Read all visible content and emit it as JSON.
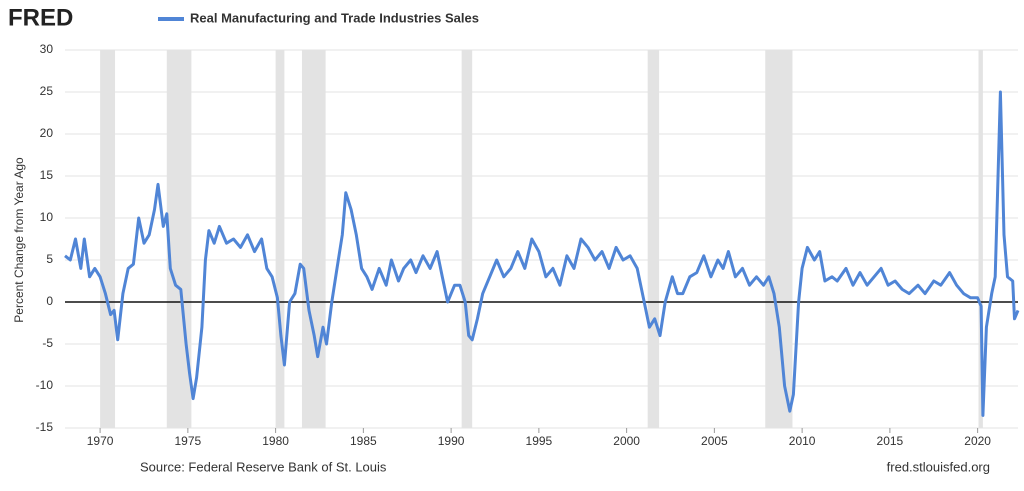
{
  "brand": "FRED",
  "chart_data": {
    "type": "line",
    "legend": "Real Manufacturing and Trade Industries Sales",
    "y_label": "Percent Change from Year Ago",
    "source": "Source: Federal Reserve Bank of St. Louis",
    "site": "fred.stlouisfed.org",
    "color": "#5085d6",
    "grid": true,
    "xlim": [
      1968.0,
      2022.3
    ],
    "ylim": [
      -15,
      30
    ],
    "xticks": [
      1970,
      1975,
      1980,
      1985,
      1990,
      1995,
      2000,
      2005,
      2010,
      2015,
      2020
    ],
    "yticks": [
      -15,
      -10,
      -5,
      0,
      5,
      10,
      15,
      20,
      25,
      30
    ],
    "recessions": [
      [
        1970.0,
        1970.85
      ],
      [
        1973.8,
        1975.2
      ],
      [
        1980.0,
        1980.5
      ],
      [
        1981.5,
        1982.85
      ],
      [
        1990.6,
        1991.2
      ],
      [
        2001.2,
        2001.85
      ],
      [
        2007.9,
        2009.45
      ],
      [
        2020.05,
        2020.3
      ]
    ],
    "x": [
      1968.0,
      1968.3,
      1968.6,
      1968.9,
      1969.1,
      1969.4,
      1969.7,
      1970.0,
      1970.3,
      1970.6,
      1970.8,
      1971.0,
      1971.3,
      1971.6,
      1971.9,
      1972.2,
      1972.5,
      1972.8,
      1973.1,
      1973.3,
      1973.6,
      1973.8,
      1974.0,
      1974.3,
      1974.6,
      1974.9,
      1975.1,
      1975.3,
      1975.5,
      1975.8,
      1976.0,
      1976.2,
      1976.5,
      1976.8,
      1977.2,
      1977.6,
      1978.0,
      1978.4,
      1978.8,
      1979.2,
      1979.5,
      1979.8,
      1980.1,
      1980.3,
      1980.5,
      1980.8,
      1981.1,
      1981.4,
      1981.6,
      1981.9,
      1982.2,
      1982.4,
      1982.7,
      1982.9,
      1983.2,
      1983.5,
      1983.8,
      1984.0,
      1984.3,
      1984.6,
      1984.9,
      1985.2,
      1985.5,
      1985.9,
      1986.3,
      1986.6,
      1987.0,
      1987.3,
      1987.7,
      1988.0,
      1988.4,
      1988.8,
      1989.2,
      1989.5,
      1989.8,
      1990.2,
      1990.5,
      1990.8,
      1991.0,
      1991.2,
      1991.5,
      1991.8,
      1992.2,
      1992.6,
      1993.0,
      1993.4,
      1993.8,
      1994.2,
      1994.6,
      1995.0,
      1995.4,
      1995.8,
      1996.2,
      1996.6,
      1997.0,
      1997.4,
      1997.8,
      1998.2,
      1998.6,
      1999.0,
      1999.4,
      1999.8,
      2000.2,
      2000.6,
      2001.0,
      2001.3,
      2001.6,
      2001.9,
      2002.2,
      2002.6,
      2002.9,
      2003.2,
      2003.6,
      2004.0,
      2004.4,
      2004.8,
      2005.2,
      2005.5,
      2005.8,
      2006.2,
      2006.6,
      2007.0,
      2007.4,
      2007.8,
      2008.1,
      2008.4,
      2008.7,
      2009.0,
      2009.3,
      2009.5,
      2009.8,
      2010.0,
      2010.3,
      2010.7,
      2011.0,
      2011.3,
      2011.7,
      2012.0,
      2012.5,
      2012.9,
      2013.3,
      2013.7,
      2014.1,
      2014.5,
      2014.9,
      2015.3,
      2015.7,
      2016.1,
      2016.6,
      2017.0,
      2017.5,
      2017.9,
      2018.4,
      2018.8,
      2019.2,
      2019.6,
      2020.0,
      2020.2,
      2020.3,
      2020.5,
      2020.8,
      2021.0,
      2021.3,
      2021.5,
      2021.7,
      2022.0,
      2022.1,
      2022.3
    ],
    "values": [
      5.5,
      5,
      7.5,
      4,
      7.5,
      3,
      4,
      3,
      1,
      -1.5,
      -1,
      -4.5,
      1,
      4,
      4.5,
      10,
      7,
      8,
      11,
      14,
      9,
      10.5,
      4,
      2,
      1.5,
      -5,
      -8.5,
      -11.5,
      -9,
      -3,
      5,
      8.5,
      7,
      9,
      7,
      7.5,
      6.5,
      8,
      6,
      7.5,
      4,
      3,
      0.5,
      -4,
      -7.5,
      0,
      1,
      4.5,
      4,
      -1,
      -4,
      -6.5,
      -3,
      -5,
      0,
      4,
      8,
      13,
      11,
      8,
      4,
      3,
      1.5,
      4,
      2,
      5,
      2.5,
      4,
      5,
      3.5,
      5.5,
      4,
      6,
      3,
      0,
      2,
      2,
      0,
      -4,
      -4.5,
      -2,
      1,
      3,
      5,
      3,
      4,
      6,
      4,
      7.5,
      6,
      3,
      4,
      2,
      5.5,
      4,
      7.5,
      6.5,
      5,
      6,
      4,
      6.5,
      5,
      5.5,
      4,
      0,
      -3,
      -2,
      -4,
      0,
      3,
      1,
      1,
      3,
      3.5,
      5.5,
      3,
      5,
      4,
      6,
      3,
      4,
      2,
      3,
      2,
      3,
      1,
      -3,
      -10,
      -13,
      -11,
      0,
      4,
      6.5,
      5,
      6,
      2.5,
      3,
      2.5,
      4,
      2,
      3.5,
      2,
      3,
      4,
      2,
      2.5,
      1.5,
      1,
      2,
      1,
      2.5,
      2,
      3.5,
      2,
      1,
      0.5,
      0.5,
      -0.5,
      -13.5,
      -3,
      1,
      3,
      25,
      8,
      3,
      2.5,
      -2,
      -1
    ]
  }
}
